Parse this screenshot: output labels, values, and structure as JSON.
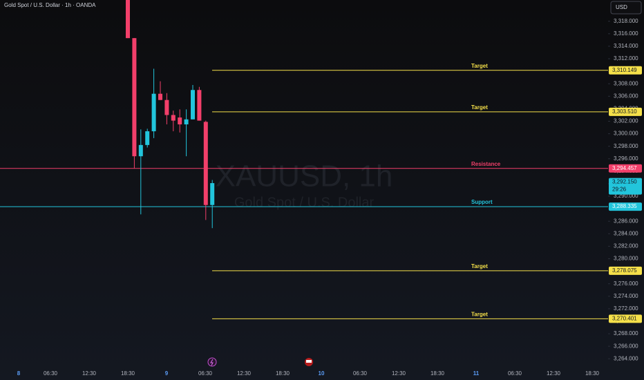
{
  "header": {
    "symbol_info": "Gold Spot / U.S. Dollar · 1h · OANDA",
    "currency_button": "USD"
  },
  "watermark": {
    "symbol": "XAUUSD, 1h",
    "description": "Gold Spot / U.S. Dollar"
  },
  "chart_data": {
    "type": "candlestick",
    "open": [
      3322.0,
      3315.3,
      3296.4,
      3298.2,
      3300.4,
      3306.4,
      3305.4,
      3303.0,
      3302.6,
      3301.5,
      3302.3,
      3307.0,
      3301.9,
      3288.6
    ],
    "high": [
      3323.0,
      3315.3,
      3300.7,
      3300.8,
      3310.4,
      3308.4,
      3306.5,
      3303.7,
      3303.9,
      3303.9,
      3307.8,
      3307.5,
      3302.1,
      3292.6
    ],
    "low": [
      3315.3,
      3294.5,
      3287.1,
      3297.8,
      3299.3,
      3305.4,
      3301.5,
      3300.4,
      3300.2,
      3296.4,
      3302.3,
      3302.1,
      3286.2,
      3284.9
    ],
    "close": [
      3315.3,
      3296.4,
      3298.2,
      3300.4,
      3306.4,
      3305.4,
      3303.0,
      3302.1,
      3301.5,
      3302.3,
      3307.0,
      3302.1,
      3288.6,
      3292.1
    ],
    "up_color": "#22c5dc",
    "down_color": "#f23f6a",
    "ylim": [
      3260.6,
      3321.4
    ],
    "yticks": [
      {
        "value": 3318,
        "label": "3,318.000"
      },
      {
        "value": 3316,
        "label": "3,316.000"
      },
      {
        "value": 3314,
        "label": "3,314.000"
      },
      {
        "value": 3312,
        "label": "3,312.000"
      },
      {
        "value": 3310,
        "label": "3,310.000"
      },
      {
        "value": 3308,
        "label": "3,308.000"
      },
      {
        "value": 3306,
        "label": "3,306.000"
      },
      {
        "value": 3304,
        "label": "3,304.000"
      },
      {
        "value": 3302,
        "label": "3,302.000"
      },
      {
        "value": 3300,
        "label": "3,300.000"
      },
      {
        "value": 3298,
        "label": "3,298.000"
      },
      {
        "value": 3296,
        "label": "3,296.000"
      },
      {
        "value": 3294,
        "label": "3,294.000"
      },
      {
        "value": 3292,
        "label": "3,292.000"
      },
      {
        "value": 3290,
        "label": "3,290.000"
      },
      {
        "value": 3288,
        "label": "3,288.000"
      },
      {
        "value": 3286,
        "label": "3,286.000"
      },
      {
        "value": 3284,
        "label": "3,284.000"
      },
      {
        "value": 3282,
        "label": "3,282.000"
      },
      {
        "value": 3280,
        "label": "3,280.000"
      },
      {
        "value": 3278,
        "label": "3,278.000"
      },
      {
        "value": 3276,
        "label": "3,276.000"
      },
      {
        "value": 3274,
        "label": "3,274.000"
      },
      {
        "value": 3272,
        "label": "3,272.000"
      },
      {
        "value": 3270,
        "label": "3,270.000"
      },
      {
        "value": 3268,
        "label": "3,268.000"
      },
      {
        "value": 3266,
        "label": "3,266.000"
      },
      {
        "value": 3264,
        "label": "3,264.000"
      }
    ],
    "xticks": [
      "8",
      "06:30",
      "12:30",
      "18:30",
      "9",
      "06:30",
      "12:30",
      "18:30",
      "10",
      "06:30",
      "12:30",
      "18:30",
      "11",
      "06:30",
      "12:30",
      "18:30"
    ],
    "levels": [
      {
        "name": "Target",
        "value": 3310.149,
        "value_label": "3,310.149",
        "color": "#f5e04a",
        "span": "right"
      },
      {
        "name": "Target",
        "value": 3303.51,
        "value_label": "3,303.510",
        "color": "#f5e04a",
        "span": "right"
      },
      {
        "name": "Resistance",
        "value": 3294.457,
        "value_label": "3,294.457",
        "color": "#f23f6a",
        "span": "full"
      },
      {
        "name": "Support",
        "value": 3288.335,
        "value_label": "3,288.335",
        "color": "#22c5dc",
        "span": "full"
      },
      {
        "name": "Target",
        "value": 3278.075,
        "value_label": "3,278.075",
        "color": "#f5e04a",
        "span": "right"
      },
      {
        "name": "Target",
        "value": 3270.401,
        "value_label": "3,270.401",
        "color": "#f5e04a",
        "span": "right"
      }
    ],
    "current_price": {
      "value": 3292.15,
      "label": "3,292.150",
      "countdown": "29:26"
    }
  }
}
